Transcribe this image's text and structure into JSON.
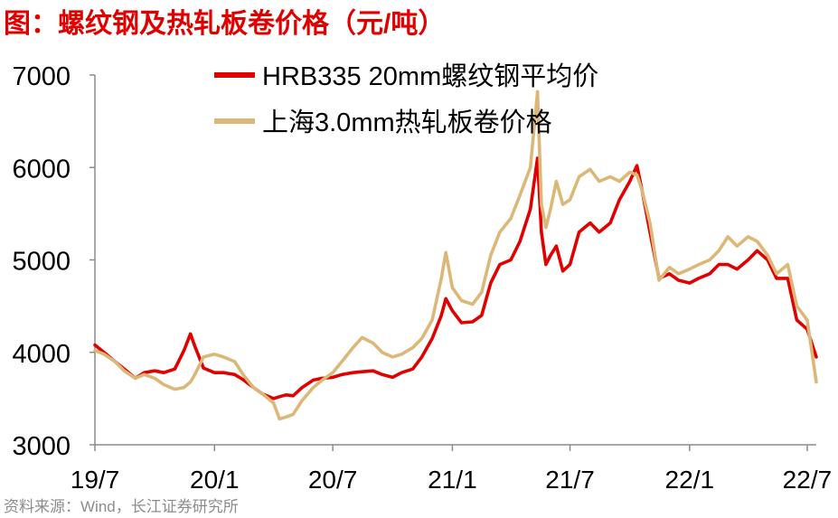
{
  "source": "资料来源：Wind，长江证券研究所",
  "colors": {
    "title": "#e00000",
    "axis": "#8c8c8c",
    "source": "#8c8c8c"
  },
  "chart_data": {
    "type": "line",
    "title": "图：螺纹钢及热轧板卷价格（元/吨）",
    "ylim": [
      3000,
      7000
    ],
    "yticks": [
      3000,
      4000,
      5000,
      6000,
      7000
    ],
    "xlim": [
      "2019-07-01",
      "2022-07-15"
    ],
    "xticks": [
      "19/7",
      "20/1",
      "20/7",
      "21/1",
      "21/7",
      "22/1",
      "22/7"
    ],
    "grid": false,
    "legend_position": "top",
    "x": [
      "2019-07-01",
      "2019-07-15",
      "2019-08-01",
      "2019-08-15",
      "2019-09-01",
      "2019-09-15",
      "2019-10-01",
      "2019-10-15",
      "2019-11-01",
      "2019-11-15",
      "2019-11-25",
      "2019-12-01",
      "2019-12-15",
      "2020-01-01",
      "2020-01-15",
      "2020-02-01",
      "2020-02-15",
      "2020-03-01",
      "2020-03-15",
      "2020-04-01",
      "2020-04-10",
      "2020-04-20",
      "2020-05-01",
      "2020-05-15",
      "2020-06-01",
      "2020-06-15",
      "2020-07-01",
      "2020-07-15",
      "2020-08-01",
      "2020-08-15",
      "2020-09-01",
      "2020-09-15",
      "2020-10-01",
      "2020-10-15",
      "2020-11-01",
      "2020-11-15",
      "2020-12-01",
      "2020-12-15",
      "2020-12-22",
      "2021-01-01",
      "2021-01-15",
      "2021-02-01",
      "2021-02-15",
      "2021-03-01",
      "2021-03-15",
      "2021-04-01",
      "2021-04-15",
      "2021-05-01",
      "2021-05-12",
      "2021-05-18",
      "2021-05-25",
      "2021-06-01",
      "2021-06-10",
      "2021-06-20",
      "2021-07-01",
      "2021-07-15",
      "2021-08-01",
      "2021-08-15",
      "2021-09-01",
      "2021-09-15",
      "2021-10-01",
      "2021-10-12",
      "2021-10-20",
      "2021-11-01",
      "2021-11-15",
      "2021-12-01",
      "2021-12-15",
      "2022-01-01",
      "2022-01-15",
      "2022-02-01",
      "2022-02-15",
      "2022-03-01",
      "2022-03-15",
      "2022-04-01",
      "2022-04-15",
      "2022-05-01",
      "2022-05-15",
      "2022-06-01",
      "2022-06-15",
      "2022-07-01",
      "2022-07-15"
    ],
    "series": [
      {
        "name": "HRB335 20mm螺纹钢平均价",
        "color": "#e00000",
        "values": [
          4080,
          4000,
          3900,
          3820,
          3720,
          3780,
          3800,
          3780,
          3820,
          4020,
          4200,
          4080,
          3830,
          3780,
          3780,
          3760,
          3700,
          3620,
          3550,
          3500,
          3520,
          3540,
          3530,
          3620,
          3700,
          3720,
          3730,
          3760,
          3780,
          3790,
          3800,
          3760,
          3730,
          3780,
          3820,
          3950,
          4150,
          4400,
          4580,
          4450,
          4320,
          4330,
          4400,
          4750,
          4950,
          5000,
          5200,
          5550,
          6100,
          5300,
          4950,
          5050,
          5150,
          4880,
          4950,
          5300,
          5400,
          5300,
          5400,
          5650,
          5850,
          6020,
          5750,
          5300,
          4800,
          4850,
          4780,
          4750,
          4800,
          4850,
          4950,
          4950,
          4900,
          5000,
          5100,
          5000,
          4800,
          4800,
          4350,
          4250,
          3950
        ]
      },
      {
        "name": "上海3.0mm热轧板卷价格",
        "color": "#dbb878",
        "values": [
          4020,
          3980,
          3900,
          3800,
          3720,
          3760,
          3720,
          3650,
          3600,
          3620,
          3680,
          3750,
          3950,
          3980,
          3950,
          3900,
          3750,
          3620,
          3550,
          3450,
          3280,
          3300,
          3330,
          3480,
          3620,
          3700,
          3780,
          3900,
          4050,
          4160,
          4100,
          4000,
          3950,
          3980,
          4050,
          4150,
          4350,
          4800,
          5080,
          4700,
          4560,
          4520,
          4650,
          5050,
          5300,
          5450,
          5700,
          6000,
          6820,
          5600,
          5350,
          5550,
          5850,
          5600,
          5650,
          5900,
          5980,
          5850,
          5900,
          5850,
          5950,
          5920,
          5750,
          5400,
          4780,
          4920,
          4850,
          4900,
          4950,
          5000,
          5100,
          5250,
          5150,
          5250,
          5200,
          5050,
          4850,
          4950,
          4500,
          4350,
          3680
        ]
      }
    ]
  }
}
